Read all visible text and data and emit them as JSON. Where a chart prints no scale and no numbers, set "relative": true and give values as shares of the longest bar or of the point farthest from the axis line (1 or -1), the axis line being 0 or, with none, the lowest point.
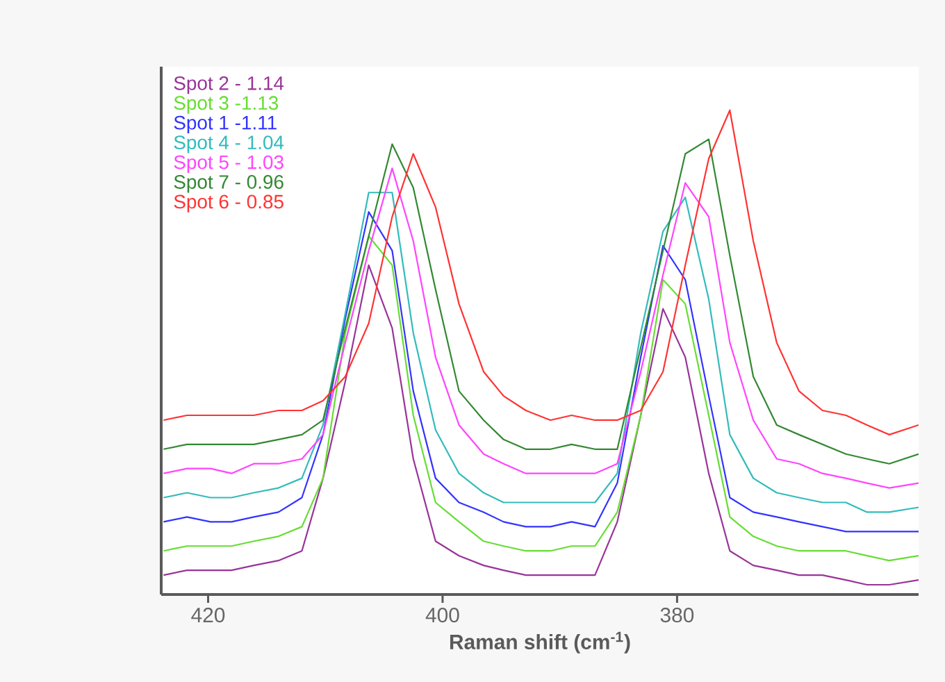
{
  "chart_data": {
    "type": "line",
    "relative": true,
    "xlabel": "Raman shift (cm$^{-1}$)",
    "xlim": [
      424,
      359.4
    ],
    "xticks": [
      420,
      400,
      380
    ],
    "legend": "top left",
    "marker": "none",
    "line_style": "solid",
    "x": [
      423.8,
      421.8,
      419.8,
      418.0,
      416.1,
      414.0,
      412.0,
      410.2,
      408.3,
      406.3,
      404.3,
      402.5,
      400.6,
      398.6,
      396.5,
      394.8,
      392.9,
      390.8,
      389.0,
      387.0,
      385.1,
      383.1,
      381.2,
      379.3,
      377.3,
      375.5,
      373.5,
      371.5,
      369.6,
      367.6,
      365.6,
      363.8,
      361.9,
      359.4
    ],
    "series": [
      {
        "name": "Spot 2 - 1.14",
        "color": "#993399",
        "values": [
          0.04,
          0.05,
          0.05,
          0.05,
          0.06,
          0.07,
          0.09,
          0.24,
          0.44,
          0.68,
          0.55,
          0.28,
          0.11,
          0.08,
          0.06,
          0.05,
          0.04,
          0.04,
          0.04,
          0.04,
          0.15,
          0.37,
          0.59,
          0.49,
          0.25,
          0.09,
          0.06,
          0.05,
          0.04,
          0.04,
          0.03,
          0.02,
          0.02,
          0.03
        ]
      },
      {
        "name": "Spot 3 -1.13",
        "color": "#66dd33",
        "values": [
          0.09,
          0.1,
          0.1,
          0.1,
          0.11,
          0.12,
          0.14,
          0.24,
          0.54,
          0.74,
          0.68,
          0.37,
          0.19,
          0.15,
          0.11,
          0.1,
          0.09,
          0.09,
          0.1,
          0.1,
          0.17,
          0.37,
          0.65,
          0.6,
          0.37,
          0.16,
          0.12,
          0.1,
          0.09,
          0.09,
          0.09,
          0.08,
          0.07,
          0.08
        ]
      },
      {
        "name": "Spot 1 -1.11",
        "color": "#3333ff",
        "values": [
          0.15,
          0.16,
          0.15,
          0.15,
          0.16,
          0.17,
          0.2,
          0.33,
          0.57,
          0.79,
          0.71,
          0.42,
          0.24,
          0.19,
          0.17,
          0.15,
          0.14,
          0.14,
          0.15,
          0.14,
          0.23,
          0.49,
          0.72,
          0.65,
          0.41,
          0.2,
          0.17,
          0.16,
          0.15,
          0.14,
          0.13,
          0.13,
          0.13,
          0.13
        ]
      },
      {
        "name": "Spot 4 - 1.04",
        "color": "#33bbbb",
        "values": [
          0.2,
          0.21,
          0.2,
          0.2,
          0.21,
          0.22,
          0.24,
          0.35,
          0.58,
          0.83,
          0.83,
          0.54,
          0.34,
          0.25,
          0.21,
          0.19,
          0.19,
          0.19,
          0.19,
          0.19,
          0.25,
          0.54,
          0.75,
          0.82,
          0.61,
          0.33,
          0.24,
          0.21,
          0.2,
          0.19,
          0.19,
          0.17,
          0.17,
          0.18
        ]
      },
      {
        "name": "Spot 5 - 1.03",
        "color": "#ff44ff",
        "values": [
          0.25,
          0.26,
          0.26,
          0.25,
          0.27,
          0.27,
          0.28,
          0.33,
          0.52,
          0.71,
          0.88,
          0.73,
          0.49,
          0.35,
          0.29,
          0.27,
          0.25,
          0.25,
          0.25,
          0.25,
          0.27,
          0.46,
          0.66,
          0.85,
          0.78,
          0.52,
          0.36,
          0.28,
          0.27,
          0.25,
          0.24,
          0.23,
          0.22,
          0.23
        ]
      },
      {
        "name": "Spot 7 - 0.96",
        "color": "#338833",
        "values": [
          0.3,
          0.31,
          0.31,
          0.31,
          0.31,
          0.32,
          0.33,
          0.36,
          0.55,
          0.74,
          0.93,
          0.84,
          0.63,
          0.42,
          0.36,
          0.32,
          0.3,
          0.3,
          0.31,
          0.3,
          0.3,
          0.51,
          0.71,
          0.91,
          0.94,
          0.7,
          0.45,
          0.35,
          0.33,
          0.31,
          0.29,
          0.28,
          0.27,
          0.29
        ]
      },
      {
        "name": "Spot 6 - 0.85",
        "color": "#ff3333",
        "values": [
          0.36,
          0.37,
          0.37,
          0.37,
          0.37,
          0.38,
          0.38,
          0.4,
          0.45,
          0.56,
          0.78,
          0.91,
          0.8,
          0.6,
          0.46,
          0.41,
          0.38,
          0.36,
          0.37,
          0.36,
          0.36,
          0.38,
          0.46,
          0.68,
          0.9,
          1.0,
          0.73,
          0.52,
          0.42,
          0.38,
          0.37,
          0.35,
          0.33,
          0.35
        ]
      }
    ]
  }
}
